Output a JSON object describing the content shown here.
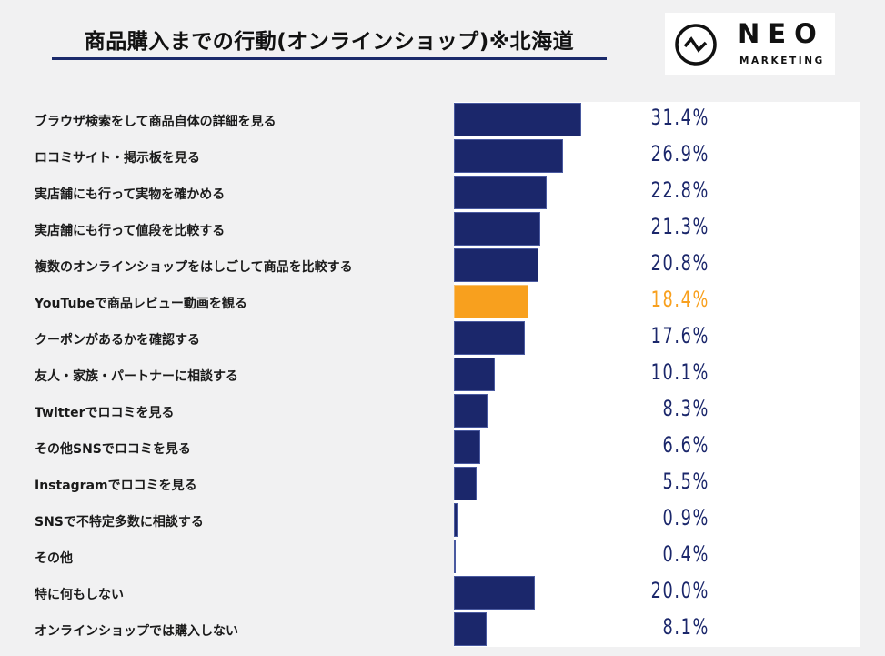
{
  "header": {
    "title": "商品購入までの行動(オンラインショップ)※北海道"
  },
  "logo": {
    "brand": "NEO",
    "sub": "MARKETING",
    "icon": "neo-circle-zigzag-icon"
  },
  "colors": {
    "bar": "#1b276b",
    "highlight": "#f8a01e",
    "title_rule": "#1b2a6b"
  },
  "chart_data": {
    "type": "bar",
    "orientation": "horizontal",
    "title": "商品購入までの行動(オンラインショップ)※北海道",
    "xlabel": "",
    "ylabel": "",
    "unit": "%",
    "grid": false,
    "categories": [
      "ブラウザ検索をして商品自体の詳細を見る",
      "ロコミサイト・掲示板を見る",
      "実店舗にも行って実物を確かめる",
      "実店舗にも行って値段を比較する",
      "複数のオンラインショップをはしごして商品を比較する",
      "YouTubeで商品レビュー動画を観る",
      "クーポンがあるかを確認する",
      "友人・家族・パートナーに相談する",
      "Twitterでロコミを見る",
      "その他SNSでロコミを見る",
      "Instagramでロコミを見る",
      "SNSで不特定多数に相談する",
      "その他",
      "特に何もしない",
      "オンラインショップでは購入しない"
    ],
    "values": [
      31.4,
      26.9,
      22.8,
      21.3,
      20.8,
      18.4,
      17.6,
      10.1,
      8.3,
      6.6,
      5.5,
      0.9,
      0.4,
      20.0,
      8.1
    ],
    "value_labels": [
      "31.4%",
      "26.9%",
      "22.8%",
      "21.3%",
      "20.8%",
      "18.4%",
      "17.6%",
      "10.1%",
      "8.3%",
      "6.6%",
      "5.5%",
      "0.9%",
      "0.4%",
      "20.0%",
      "8.1%"
    ],
    "highlight_index": 5
  }
}
